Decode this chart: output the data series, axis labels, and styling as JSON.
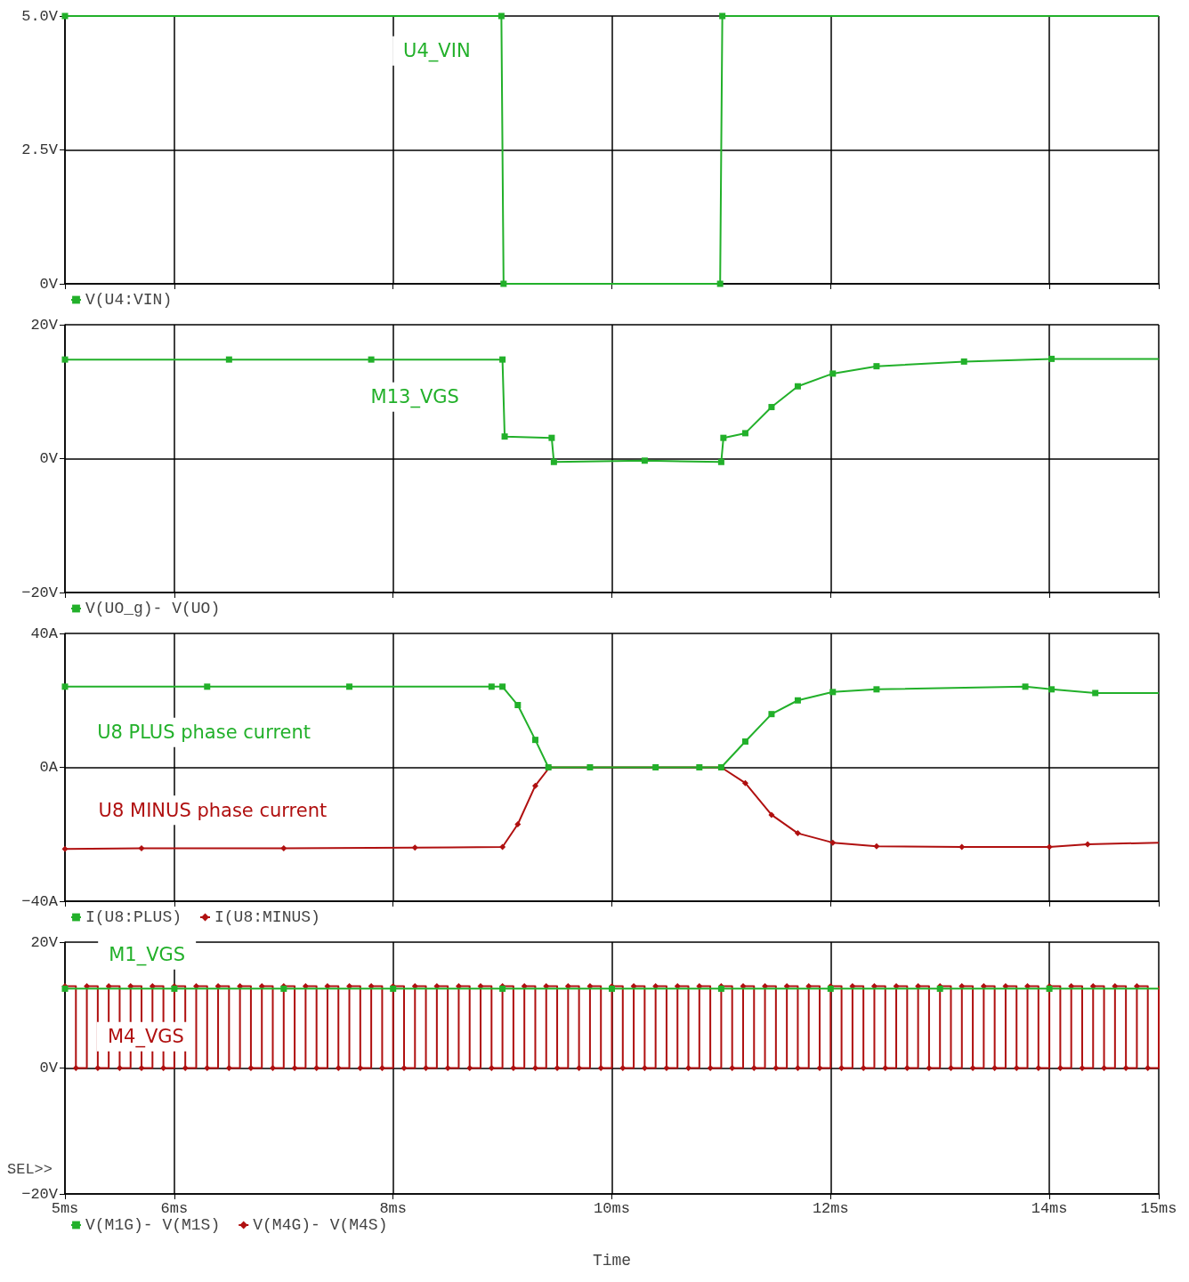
{
  "chart_data": [
    {
      "type": "line",
      "xlim": [
        5,
        15
      ],
      "xticks": [
        5,
        6,
        8,
        10,
        12,
        14,
        15
      ],
      "ylim": [
        0,
        5
      ],
      "yticks": [
        {
          "value": 0,
          "label": "0V"
        },
        {
          "value": 2.5,
          "label": "2.5V"
        },
        {
          "value": 5,
          "label": "5.0V"
        }
      ],
      "tick_labels": "y",
      "grid": true,
      "legend": "bottom left",
      "line_style": "solid",
      "series": [
        {
          "name": "V(U4:VIN)",
          "color": "#22b02a",
          "marker": "square",
          "x": [
            5,
            8.99,
            9.01,
            10.99,
            11.01,
            15
          ],
          "values": [
            5,
            5,
            0,
            0,
            5,
            5
          ]
        }
      ],
      "annotations": [
        "U4_VIN"
      ]
    },
    {
      "type": "line",
      "xlim": [
        5,
        15
      ],
      "xticks": [
        5,
        6,
        8,
        10,
        12,
        14,
        15
      ],
      "ylim": [
        -20,
        20
      ],
      "yticks": [
        {
          "value": -20,
          "label": "−20V"
        },
        {
          "value": 0,
          "label": "0V"
        },
        {
          "value": 20,
          "label": "20V"
        }
      ],
      "tick_labels": "y",
      "grid": true,
      "legend": "bottom left",
      "line_style": "solid",
      "series": [
        {
          "name": "V(UO_g)- V(UO)",
          "color": "#22b02a",
          "marker": "square",
          "x": [
            5,
            6.5,
            7.8,
            9,
            9.02,
            9.45,
            9.47,
            10.3,
            11,
            11.02,
            11.22,
            11.46,
            11.7,
            12.02,
            12.42,
            13.22,
            14.02,
            15
          ],
          "values": [
            14.8,
            14.8,
            14.8,
            14.8,
            3.3,
            3.1,
            -0.5,
            -0.3,
            -0.5,
            3.1,
            3.8,
            7.7,
            10.8,
            12.7,
            13.8,
            14.5,
            14.9,
            14.9
          ]
        }
      ],
      "annotations": [
        "M13_VGS"
      ]
    },
    {
      "type": "line",
      "xlim": [
        5,
        15
      ],
      "xticks": [
        5,
        6,
        8,
        10,
        12,
        14,
        15
      ],
      "ylim": [
        -40,
        40
      ],
      "yticks": [
        {
          "value": -40,
          "label": "−40A"
        },
        {
          "value": 0,
          "label": "0A"
        },
        {
          "value": 40,
          "label": "40A"
        }
      ],
      "tick_labels": "y",
      "grid": true,
      "legend": "bottom left",
      "line_style": "solid",
      "series": [
        {
          "name": "I(U8:PLUS)",
          "color": "#22b02a",
          "marker": "square",
          "x": [
            5,
            6.3,
            7.6,
            8.9,
            9,
            9.14,
            9.3,
            9.42,
            9.8,
            10.4,
            10.8,
            11,
            11.22,
            11.46,
            11.7,
            12.02,
            12.42,
            13.78,
            14.02,
            14.42,
            15
          ],
          "values": [
            24.1,
            24.1,
            24.1,
            24.1,
            24.1,
            18.6,
            8.2,
            0,
            0,
            0,
            0,
            0,
            7.7,
            15.9,
            20,
            22.5,
            23.3,
            24.1,
            23.3,
            22.2,
            22.2
          ]
        },
        {
          "name": "I(U8:MINUS)",
          "color": "#b01010",
          "marker": "diamond",
          "x": [
            5,
            5.7,
            7,
            8.2,
            9,
            9.14,
            9.3,
            9.43,
            11,
            11.22,
            11.46,
            11.7,
            12.02,
            12.42,
            13.2,
            14,
            14.35,
            15
          ],
          "values": [
            -24.4,
            -24.2,
            -24.2,
            -24,
            -23.8,
            -17,
            -5.5,
            0,
            0,
            -4.7,
            -14.2,
            -19.7,
            -22.5,
            -23.6,
            -23.8,
            -23.8,
            -23,
            -22.5
          ]
        }
      ],
      "annotations": [
        "U8 PLUS phase current",
        "U8 MINUS phase current"
      ]
    },
    {
      "type": "line",
      "xlim": [
        5,
        15
      ],
      "xticks": [
        {
          "value": 5,
          "label": "5ms"
        },
        {
          "value": 6,
          "label": "6ms"
        },
        {
          "value": 8,
          "label": "8ms"
        },
        {
          "value": 10,
          "label": "10ms"
        },
        {
          "value": 12,
          "label": "12ms"
        },
        {
          "value": 14,
          "label": "14ms"
        },
        {
          "value": 15,
          "label": "15ms"
        }
      ],
      "ylim": [
        -20,
        20
      ],
      "yticks": [
        {
          "value": -20,
          "label": "−20V"
        },
        {
          "value": 0,
          "label": "0V"
        },
        {
          "value": 20,
          "label": "20V"
        }
      ],
      "xlabel": "Time",
      "grid": true,
      "legend": "bottom left",
      "line_style": "solid",
      "series": [
        {
          "name": "V(M1G)- V(M1S)",
          "color": "#22b02a",
          "marker": "square",
          "x": [
            5,
            6,
            7,
            8,
            9,
            10,
            11,
            12,
            13,
            14,
            15
          ],
          "values": [
            12.6,
            12.6,
            12.6,
            12.6,
            12.6,
            12.6,
            12.6,
            12.6,
            12.6,
            12.6,
            12.6
          ]
        },
        {
          "name": "V(M4G)- V(M4S)",
          "type": "step",
          "color": "#b01010",
          "marker": "diamond",
          "x": [
            5,
            5.1,
            5.2,
            5.3,
            5.4,
            5.5,
            5.6,
            5.7,
            5.8,
            5.9,
            6,
            6.1,
            6.2,
            6.3,
            6.4,
            6.5,
            6.6,
            6.7,
            6.8,
            6.9,
            7,
            7.1,
            7.2,
            7.3,
            7.4,
            7.5,
            7.6,
            7.7,
            7.8,
            7.9,
            8,
            8.1,
            8.2,
            8.3,
            8.4,
            8.5,
            8.6,
            8.7,
            8.8,
            8.9,
            9,
            9.1,
            9.2,
            9.3,
            9.4,
            9.5,
            9.6,
            9.7,
            9.8,
            9.9,
            10,
            10.1,
            10.2,
            10.3,
            10.4,
            10.5,
            10.6,
            10.7,
            10.8,
            10.9,
            11,
            11.1,
            11.2,
            11.3,
            11.4,
            11.5,
            11.6,
            11.7,
            11.8,
            11.9,
            12,
            12.1,
            12.2,
            12.3,
            12.4,
            12.5,
            12.6,
            12.7,
            12.8,
            12.9,
            13,
            13.1,
            13.2,
            13.3,
            13.4,
            13.5,
            13.6,
            13.7,
            13.8,
            13.9,
            14,
            14.1,
            14.2,
            14.3,
            14.4,
            14.5,
            14.6,
            14.7,
            14.8,
            14.9,
            15
          ],
          "values": [
            13,
            0,
            13,
            0,
            13,
            0,
            13,
            0,
            13,
            0,
            13,
            0,
            13,
            0,
            13,
            0,
            13,
            0,
            13,
            0,
            13,
            0,
            13,
            0,
            13,
            0,
            13,
            0,
            13,
            0,
            13,
            0,
            13,
            0,
            13,
            0,
            13,
            0,
            13,
            0,
            13,
            0,
            13,
            0,
            13,
            0,
            13,
            0,
            13,
            0,
            13,
            0,
            13,
            0,
            13,
            0,
            13,
            0,
            13,
            0,
            13,
            0,
            13,
            0,
            13,
            0,
            13,
            0,
            13,
            0,
            13,
            0,
            13,
            0,
            13,
            0,
            13,
            0,
            13,
            0,
            13,
            0,
            13,
            0,
            13,
            0,
            13,
            0,
            13,
            0,
            13,
            0,
            13,
            0,
            13,
            0,
            13,
            0,
            13,
            0,
            13
          ]
        }
      ],
      "annotations": [
        "M1_VGS",
        "M4_VGS",
        "SEL>>"
      ]
    }
  ]
}
